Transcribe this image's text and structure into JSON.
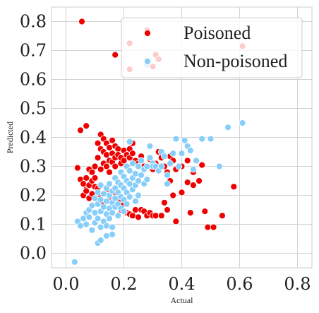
{
  "chart_data": {
    "type": "scatter",
    "title": "",
    "xlabel": "Actual",
    "ylabel": "Predicted",
    "xlim": [
      -0.05,
      0.85
    ],
    "ylim": [
      -0.05,
      0.85
    ],
    "xticks": [
      "0.0",
      "0.2",
      "0.4",
      "0.6",
      "0.8"
    ],
    "yticks": [
      "0.0",
      "0.1",
      "0.2",
      "0.3",
      "0.4",
      "0.5",
      "0.6",
      "0.7",
      "0.8"
    ],
    "grid": true,
    "legend": "top-right",
    "series": [
      {
        "name": "Poisoned",
        "color": "#ee0000",
        "points": [
          [
            0.055,
            0.8
          ],
          [
            0.07,
            0.44
          ],
          [
            0.05,
            0.425
          ],
          [
            0.28,
            0.77
          ],
          [
            0.28,
            0.76
          ],
          [
            0.17,
            0.685
          ],
          [
            0.22,
            0.725
          ],
          [
            0.22,
            0.635
          ],
          [
            0.28,
            0.665
          ],
          [
            0.3,
            0.645
          ],
          [
            0.31,
            0.685
          ],
          [
            0.32,
            0.67
          ],
          [
            0.61,
            0.715
          ],
          [
            0.04,
            0.295
          ],
          [
            0.05,
            0.255
          ],
          [
            0.06,
            0.24
          ],
          [
            0.07,
            0.26
          ],
          [
            0.07,
            0.22
          ],
          [
            0.08,
            0.29
          ],
          [
            0.08,
            0.235
          ],
          [
            0.09,
            0.28
          ],
          [
            0.09,
            0.25
          ],
          [
            0.1,
            0.3
          ],
          [
            0.1,
            0.26
          ],
          [
            0.1,
            0.23
          ],
          [
            0.11,
            0.38
          ],
          [
            0.11,
            0.33
          ],
          [
            0.12,
            0.41
          ],
          [
            0.12,
            0.36
          ],
          [
            0.12,
            0.29
          ],
          [
            0.13,
            0.395
          ],
          [
            0.13,
            0.35
          ],
          [
            0.13,
            0.31
          ],
          [
            0.14,
            0.38
          ],
          [
            0.14,
            0.34
          ],
          [
            0.14,
            0.3
          ],
          [
            0.15,
            0.365
          ],
          [
            0.15,
            0.32
          ],
          [
            0.15,
            0.28
          ],
          [
            0.16,
            0.39
          ],
          [
            0.16,
            0.345
          ],
          [
            0.16,
            0.315
          ],
          [
            0.17,
            0.37
          ],
          [
            0.17,
            0.33
          ],
          [
            0.17,
            0.3
          ],
          [
            0.18,
            0.36
          ],
          [
            0.18,
            0.34
          ],
          [
            0.19,
            0.33
          ],
          [
            0.19,
            0.31
          ],
          [
            0.2,
            0.355
          ],
          [
            0.2,
            0.32
          ],
          [
            0.21,
            0.34
          ],
          [
            0.21,
            0.3
          ],
          [
            0.22,
            0.33
          ],
          [
            0.22,
            0.36
          ],
          [
            0.23,
            0.345
          ],
          [
            0.23,
            0.38
          ],
          [
            0.24,
            0.32
          ],
          [
            0.25,
            0.31
          ],
          [
            0.26,
            0.335
          ],
          [
            0.27,
            0.3
          ],
          [
            0.29,
            0.325
          ],
          [
            0.3,
            0.29
          ],
          [
            0.31,
            0.31
          ],
          [
            0.32,
            0.35
          ],
          [
            0.33,
            0.33
          ],
          [
            0.34,
            0.3
          ],
          [
            0.35,
            0.28
          ],
          [
            0.36,
            0.335
          ],
          [
            0.37,
            0.32
          ],
          [
            0.38,
            0.29
          ],
          [
            0.4,
            0.3
          ],
          [
            0.42,
            0.32
          ],
          [
            0.44,
            0.28
          ],
          [
            0.46,
            0.25
          ],
          [
            0.47,
            0.305
          ],
          [
            0.06,
            0.2
          ],
          [
            0.07,
            0.215
          ],
          [
            0.08,
            0.19
          ],
          [
            0.09,
            0.205
          ],
          [
            0.11,
            0.225
          ],
          [
            0.12,
            0.2
          ],
          [
            0.13,
            0.17
          ],
          [
            0.14,
            0.22
          ],
          [
            0.15,
            0.195
          ],
          [
            0.16,
            0.16
          ],
          [
            0.17,
            0.21
          ],
          [
            0.18,
            0.18
          ],
          [
            0.19,
            0.15
          ],
          [
            0.2,
            0.17
          ],
          [
            0.21,
            0.14
          ],
          [
            0.22,
            0.135
          ],
          [
            0.23,
            0.13
          ],
          [
            0.24,
            0.15
          ],
          [
            0.25,
            0.125
          ],
          [
            0.26,
            0.15
          ],
          [
            0.27,
            0.145
          ],
          [
            0.28,
            0.13
          ],
          [
            0.29,
            0.14
          ],
          [
            0.3,
            0.13
          ],
          [
            0.31,
            0.13
          ],
          [
            0.33,
            0.13
          ],
          [
            0.34,
            0.175
          ],
          [
            0.35,
            0.15
          ],
          [
            0.36,
            0.25
          ],
          [
            0.37,
            0.2
          ],
          [
            0.38,
            0.11
          ],
          [
            0.4,
            0.21
          ],
          [
            0.42,
            0.245
          ],
          [
            0.43,
            0.14
          ],
          [
            0.44,
            0.235
          ],
          [
            0.48,
            0.145
          ],
          [
            0.49,
            0.09
          ],
          [
            0.51,
            0.09
          ],
          [
            0.54,
            0.13
          ],
          [
            0.58,
            0.23
          ]
        ]
      },
      {
        "name": "Non-poisoned",
        "color": "#87cefa",
        "points": [
          [
            0.03,
            -0.03
          ],
          [
            0.11,
            0.035
          ],
          [
            0.12,
            0.045
          ],
          [
            0.28,
            0.65
          ],
          [
            0.04,
            0.11
          ],
          [
            0.05,
            0.095
          ],
          [
            0.06,
            0.12
          ],
          [
            0.07,
            0.14
          ],
          [
            0.07,
            0.1
          ],
          [
            0.08,
            0.15
          ],
          [
            0.08,
            0.125
          ],
          [
            0.09,
            0.165
          ],
          [
            0.09,
            0.08
          ],
          [
            0.1,
            0.19
          ],
          [
            0.1,
            0.14
          ],
          [
            0.1,
            0.105
          ],
          [
            0.11,
            0.21
          ],
          [
            0.11,
            0.17
          ],
          [
            0.11,
            0.12
          ],
          [
            0.12,
            0.235
          ],
          [
            0.12,
            0.185
          ],
          [
            0.12,
            0.145
          ],
          [
            0.12,
            0.09
          ],
          [
            0.13,
            0.205
          ],
          [
            0.13,
            0.16
          ],
          [
            0.13,
            0.11
          ],
          [
            0.14,
            0.225
          ],
          [
            0.14,
            0.18
          ],
          [
            0.14,
            0.135
          ],
          [
            0.14,
            0.095
          ],
          [
            0.15,
            0.24
          ],
          [
            0.15,
            0.2
          ],
          [
            0.15,
            0.155
          ],
          [
            0.15,
            0.12
          ],
          [
            0.16,
            0.215
          ],
          [
            0.16,
            0.175
          ],
          [
            0.16,
            0.14
          ],
          [
            0.16,
            0.09
          ],
          [
            0.17,
            0.26
          ],
          [
            0.17,
            0.225
          ],
          [
            0.17,
            0.19
          ],
          [
            0.17,
            0.16
          ],
          [
            0.18,
            0.245
          ],
          [
            0.18,
            0.21
          ],
          [
            0.18,
            0.17
          ],
          [
            0.18,
            0.13
          ],
          [
            0.19,
            0.28
          ],
          [
            0.19,
            0.235
          ],
          [
            0.19,
            0.195
          ],
          [
            0.19,
            0.155
          ],
          [
            0.2,
            0.265
          ],
          [
            0.2,
            0.225
          ],
          [
            0.2,
            0.185
          ],
          [
            0.2,
            0.145
          ],
          [
            0.21,
            0.3
          ],
          [
            0.21,
            0.25
          ],
          [
            0.21,
            0.21
          ],
          [
            0.21,
            0.17
          ],
          [
            0.22,
            0.285
          ],
          [
            0.22,
            0.24
          ],
          [
            0.22,
            0.195
          ],
          [
            0.22,
            0.385
          ],
          [
            0.23,
            0.31
          ],
          [
            0.23,
            0.26
          ],
          [
            0.23,
            0.22
          ],
          [
            0.24,
            0.275
          ],
          [
            0.24,
            0.235
          ],
          [
            0.24,
            0.18
          ],
          [
            0.25,
            0.3
          ],
          [
            0.25,
            0.25
          ],
          [
            0.25,
            0.2
          ],
          [
            0.26,
            0.32
          ],
          [
            0.26,
            0.27
          ],
          [
            0.27,
            0.29
          ],
          [
            0.27,
            0.24
          ],
          [
            0.28,
            0.3
          ],
          [
            0.28,
            0.255
          ],
          [
            0.29,
            0.37
          ],
          [
            0.29,
            0.33
          ],
          [
            0.3,
            0.31
          ],
          [
            0.3,
            0.3
          ],
          [
            0.31,
            0.3
          ],
          [
            0.32,
            0.285
          ],
          [
            0.33,
            0.35
          ],
          [
            0.33,
            0.3
          ],
          [
            0.34,
            0.335
          ],
          [
            0.35,
            0.27
          ],
          [
            0.36,
            0.31
          ],
          [
            0.37,
            0.345
          ],
          [
            0.38,
            0.395
          ],
          [
            0.39,
            0.3
          ],
          [
            0.4,
            0.345
          ],
          [
            0.41,
            0.39
          ],
          [
            0.42,
            0.37
          ],
          [
            0.43,
            0.355
          ],
          [
            0.44,
            0.29
          ],
          [
            0.45,
            0.32
          ],
          [
            0.47,
            0.395
          ],
          [
            0.5,
            0.395
          ],
          [
            0.53,
            0.3
          ],
          [
            0.56,
            0.435
          ],
          [
            0.61,
            0.45
          ],
          [
            0.16,
            0.065
          ],
          [
            0.14,
            0.06
          ],
          [
            0.35,
            0.24
          ]
        ]
      }
    ]
  }
}
